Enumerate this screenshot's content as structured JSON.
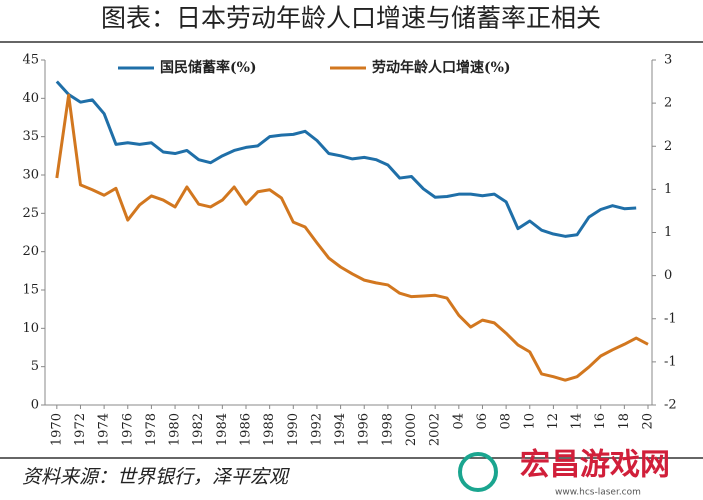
{
  "chart_data": {
    "type": "line",
    "title": "图表：日本劳动年龄人口增速与储蓄率正相关",
    "source": "资料来源：世界银行，泽平宏观",
    "watermark": "宏昌游戏网",
    "watermark_url": "www.hcs-laser.com",
    "x": [
      1970,
      1971,
      1972,
      1973,
      1974,
      1975,
      1976,
      1977,
      1978,
      1979,
      1980,
      1981,
      1982,
      1983,
      1984,
      1985,
      1986,
      1987,
      1988,
      1989,
      1990,
      1991,
      1992,
      1993,
      1994,
      1995,
      1996,
      1997,
      1998,
      1999,
      2000,
      2001,
      2002,
      2003,
      2004,
      2005,
      2006,
      2007,
      2008,
      2009,
      2010,
      2011,
      2012,
      2013,
      2014,
      2015,
      2016,
      2017,
      2018,
      2019,
      2020
    ],
    "series": [
      {
        "name": "国民储蓄率(%)",
        "color": "#1f6fa8",
        "axis": "y",
        "values": [
          42.2,
          40.5,
          39.5,
          39.8,
          38,
          34,
          34.2,
          34,
          34.2,
          33,
          32.8,
          33.2,
          32,
          31.6,
          32.5,
          33.2,
          33.6,
          33.8,
          35,
          35.2,
          35.3,
          35.7,
          34.5,
          32.8,
          32.5,
          32.1,
          32.3,
          32,
          31.3,
          29.6,
          29.8,
          28.2,
          27.1,
          27.2,
          27.5,
          27.5,
          27.3,
          27.5,
          26.5,
          23,
          24,
          22.8,
          22.3,
          22,
          22.2,
          24.5,
          25.5,
          26,
          25.6,
          25.7,
          null
        ]
      },
      {
        "name": "劳动年龄人口增速(%)",
        "color": "#d2771f",
        "axis": "y2",
        "values": [
          1.29,
          2.49,
          1.19,
          1.12,
          1.04,
          1.14,
          0.68,
          0.9,
          1.03,
          0.97,
          0.87,
          1.16,
          0.91,
          0.87,
          0.97,
          1.16,
          0.91,
          1.09,
          1.12,
          1.0,
          0.65,
          0.58,
          0.35,
          0.13,
          0.0,
          -0.1,
          -0.19,
          -0.23,
          -0.26,
          -0.38,
          -0.43,
          -0.42,
          -0.41,
          -0.45,
          -0.7,
          -0.87,
          -0.77,
          -0.81,
          -0.96,
          -1.13,
          -1.23,
          -1.55,
          -1.59,
          -1.64,
          -1.59,
          -1.45,
          -1.29,
          -1.2,
          -1.12,
          -1.03,
          -1.12
        ]
      }
    ],
    "xlim": [
      1969,
      2020
    ],
    "xticks": [
      1970,
      1972,
      1974,
      1976,
      1978,
      1980,
      1982,
      1984,
      1986,
      1988,
      1990,
      1992,
      1994,
      1996,
      1998,
      2000,
      2002,
      {
        "value": 2004,
        "label": "04"
      },
      {
        "value": 2006,
        "label": "06"
      },
      {
        "value": 2008,
        "label": "08"
      },
      {
        "value": 2010,
        "label": "10"
      },
      {
        "value": 2012,
        "label": "12"
      },
      {
        "value": 2014,
        "label": "14"
      },
      {
        "value": 2016,
        "label": "16"
      },
      {
        "value": 2018,
        "label": "18"
      },
      {
        "value": 2020,
        "label": "20"
      }
    ],
    "ylim": [
      0,
      45
    ],
    "yticks": [
      0,
      5,
      10,
      15,
      20,
      25,
      30,
      35,
      40,
      45
    ],
    "y2lim": [
      -2,
      3
    ],
    "y2ticks": [
      -2,
      {
        "value": -1.375,
        "label": "-1"
      },
      {
        "value": -0.75,
        "label": "-1"
      },
      {
        "value": -0.125,
        "label": "0"
      },
      {
        "value": 0.5,
        "label": "1"
      },
      {
        "value": 1.125,
        "label": "1"
      },
      {
        "value": 1.75,
        "label": "2"
      },
      {
        "value": 2.375,
        "label": "2"
      },
      3
    ],
    "legend": "top"
  }
}
